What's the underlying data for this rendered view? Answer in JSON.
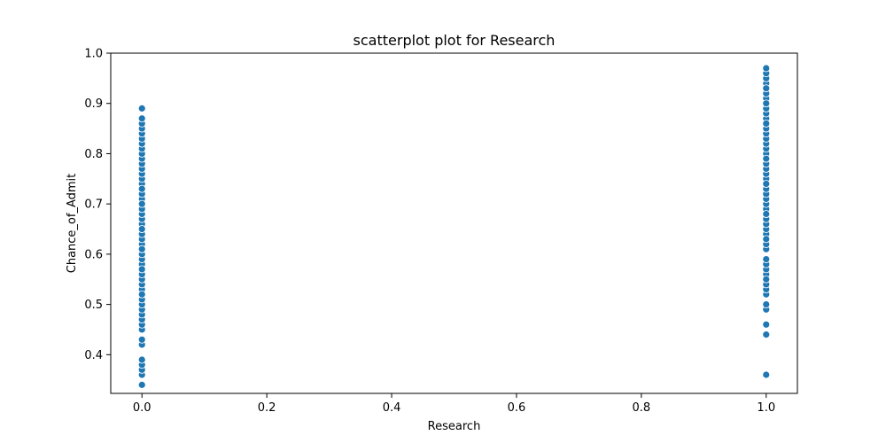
{
  "chart_data": {
    "type": "scatter",
    "title": "scatterplot plot for Research",
    "xlabel": "Research",
    "ylabel": "Chance_of_Admit",
    "xlim": [
      -0.05,
      1.05
    ],
    "ylim": [
      0.323,
      1.0
    ],
    "xticks": [
      "0.0",
      "0.2",
      "0.4",
      "0.6",
      "0.8",
      "1.0"
    ],
    "yticks": [
      "0.4",
      "0.5",
      "0.6",
      "0.7",
      "0.8",
      "0.9",
      "1.0"
    ],
    "grid": false,
    "point_color": "#1f77b4",
    "series": [
      {
        "x": [
          0,
          0,
          0,
          0,
          0,
          0,
          0,
          0,
          0,
          0,
          0,
          0,
          0,
          0,
          0,
          0,
          0,
          0,
          0,
          0,
          0,
          0,
          0,
          0,
          0,
          0,
          0,
          0,
          0,
          0,
          0,
          0,
          0,
          0,
          0,
          0,
          0,
          0,
          0,
          0,
          0,
          0,
          0,
          0,
          0,
          0,
          0,
          0,
          0,
          0,
          0,
          0,
          0,
          0,
          0,
          0,
          0
        ],
        "y": [
          0.34,
          0.36,
          0.37,
          0.38,
          0.39,
          0.42,
          0.43,
          0.45,
          0.46,
          0.47,
          0.48,
          0.49,
          0.5,
          0.51,
          0.52,
          0.53,
          0.54,
          0.55,
          0.56,
          0.57,
          0.58,
          0.59,
          0.6,
          0.61,
          0.62,
          0.63,
          0.64,
          0.65,
          0.66,
          0.67,
          0.68,
          0.69,
          0.7,
          0.71,
          0.72,
          0.73,
          0.74,
          0.75,
          0.76,
          0.77,
          0.78,
          0.79,
          0.8,
          0.81,
          0.82,
          0.83,
          0.84,
          0.85,
          0.86,
          0.87,
          0.89,
          0.65,
          0.7,
          0.61,
          0.57,
          0.52,
          0.73
        ]
      },
      {
        "x": [
          1,
          1,
          1,
          1,
          1,
          1,
          1,
          1,
          1,
          1,
          1,
          1,
          1,
          1,
          1,
          1,
          1,
          1,
          1,
          1,
          1,
          1,
          1,
          1,
          1,
          1,
          1,
          1,
          1,
          1,
          1,
          1,
          1,
          1,
          1,
          1,
          1,
          1,
          1,
          1,
          1,
          1,
          1,
          1,
          1,
          1,
          1,
          1,
          1,
          1,
          1,
          1,
          1,
          1,
          1,
          1
        ],
        "y": [
          0.36,
          0.44,
          0.46,
          0.49,
          0.5,
          0.52,
          0.53,
          0.54,
          0.56,
          0.57,
          0.58,
          0.59,
          0.61,
          0.62,
          0.64,
          0.65,
          0.66,
          0.67,
          0.68,
          0.69,
          0.7,
          0.71,
          0.72,
          0.73,
          0.74,
          0.75,
          0.76,
          0.77,
          0.78,
          0.79,
          0.8,
          0.81,
          0.82,
          0.83,
          0.84,
          0.85,
          0.86,
          0.87,
          0.88,
          0.89,
          0.9,
          0.91,
          0.92,
          0.93,
          0.94,
          0.95,
          0.96,
          0.97,
          0.9,
          0.86,
          0.79,
          0.74,
          0.68,
          0.63,
          0.55,
          0.93
        ]
      }
    ]
  }
}
